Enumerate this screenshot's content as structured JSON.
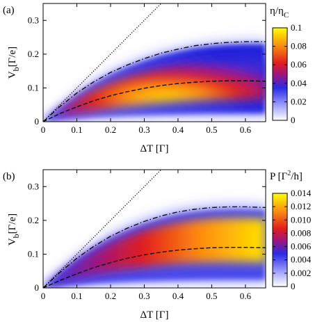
{
  "chart_data": [
    {
      "type": "heatmap",
      "panel_tag": "(a)",
      "xlabel": "ΔT [Γ]",
      "ylabel_main": "V",
      "ylabel_sub": "b",
      "ylabel_unit": "[Γ/e]",
      "xlim": [
        0,
        0.66
      ],
      "ylim": [
        0,
        0.35
      ],
      "xticks": [
        0,
        0.1,
        0.2,
        0.3,
        0.4,
        0.5,
        0.6
      ],
      "xtick_labels": [
        "0",
        "0.1",
        "0.2",
        "0.3",
        "0.4",
        "0.5",
        "0.6"
      ],
      "yticks": [
        0,
        0.1,
        0.2,
        0.3
      ],
      "ytick_labels": [
        "0",
        "0.1",
        "0.2",
        "0.3"
      ],
      "colorbar": {
        "title_main": "η/η",
        "title_sub": "C",
        "range": [
          0,
          0.1
        ],
        "ticks": [
          0,
          0.02,
          0.04,
          0.06,
          0.08,
          0.1
        ],
        "tick_labels": [
          "0",
          "0.02",
          "0.04",
          "0.06",
          "0.08",
          "0.1"
        ]
      },
      "lines": [
        {
          "style": "dotted",
          "x": [
            0,
            0.35
          ],
          "y": [
            0,
            0.35
          ]
        },
        {
          "style": "dashdot",
          "x": [
            0,
            0.05,
            0.1,
            0.15,
            0.2,
            0.25,
            0.3,
            0.35,
            0.4,
            0.45,
            0.5,
            0.55,
            0.6,
            0.66
          ],
          "y": [
            0,
            0.045,
            0.085,
            0.118,
            0.146,
            0.168,
            0.187,
            0.203,
            0.215,
            0.225,
            0.231,
            0.235,
            0.237,
            0.237
          ]
        },
        {
          "style": "dashed",
          "x": [
            0,
            0.05,
            0.1,
            0.15,
            0.2,
            0.25,
            0.3,
            0.35,
            0.4,
            0.45,
            0.5,
            0.55,
            0.6,
            0.66
          ],
          "y": [
            0,
            0.024,
            0.044,
            0.062,
            0.077,
            0.089,
            0.099,
            0.107,
            0.113,
            0.117,
            0.12,
            0.121,
            0.121,
            0.12
          ]
        }
      ]
    },
    {
      "type": "heatmap",
      "panel_tag": "(b)",
      "xlabel": "ΔT [Γ]",
      "ylabel_main": "V",
      "ylabel_sub": "b",
      "ylabel_unit": "[Γ/e]",
      "xlim": [
        0,
        0.66
      ],
      "ylim": [
        0,
        0.35
      ],
      "xticks": [
        0,
        0.1,
        0.2,
        0.3,
        0.4,
        0.5,
        0.6
      ],
      "xtick_labels": [
        "0",
        "0.1",
        "0.2",
        "0.3",
        "0.4",
        "0.5",
        "0.6"
      ],
      "yticks": [
        0,
        0.1,
        0.2,
        0.3
      ],
      "ytick_labels": [
        "0",
        "0.1",
        "0.2",
        "0.3"
      ],
      "colorbar": {
        "title_main": "P [Γ",
        "title_sup": "2",
        "title_end": "/h]",
        "range": [
          0,
          0.014
        ],
        "ticks": [
          0,
          0.002,
          0.004,
          0.006,
          0.008,
          0.01,
          0.012,
          0.014
        ],
        "tick_labels": [
          "0",
          "0.002",
          "0.004",
          "0.006",
          "0.008",
          "0.010",
          "0.012",
          "0.014"
        ]
      },
      "lines": [
        {
          "style": "dotted",
          "x": [
            0,
            0.35
          ],
          "y": [
            0,
            0.35
          ]
        },
        {
          "style": "dashdot",
          "x": [
            0,
            0.05,
            0.1,
            0.15,
            0.2,
            0.25,
            0.3,
            0.35,
            0.4,
            0.45,
            0.5,
            0.55,
            0.6,
            0.66
          ],
          "y": [
            0,
            0.046,
            0.088,
            0.123,
            0.153,
            0.177,
            0.197,
            0.213,
            0.225,
            0.233,
            0.238,
            0.24,
            0.24,
            0.238
          ]
        },
        {
          "style": "dashed",
          "x": [
            0,
            0.05,
            0.1,
            0.15,
            0.2,
            0.25,
            0.3,
            0.35,
            0.4,
            0.45,
            0.5,
            0.55,
            0.6,
            0.66
          ],
          "y": [
            0,
            0.022,
            0.042,
            0.06,
            0.075,
            0.088,
            0.098,
            0.106,
            0.112,
            0.116,
            0.119,
            0.12,
            0.12,
            0.119
          ]
        }
      ]
    }
  ]
}
